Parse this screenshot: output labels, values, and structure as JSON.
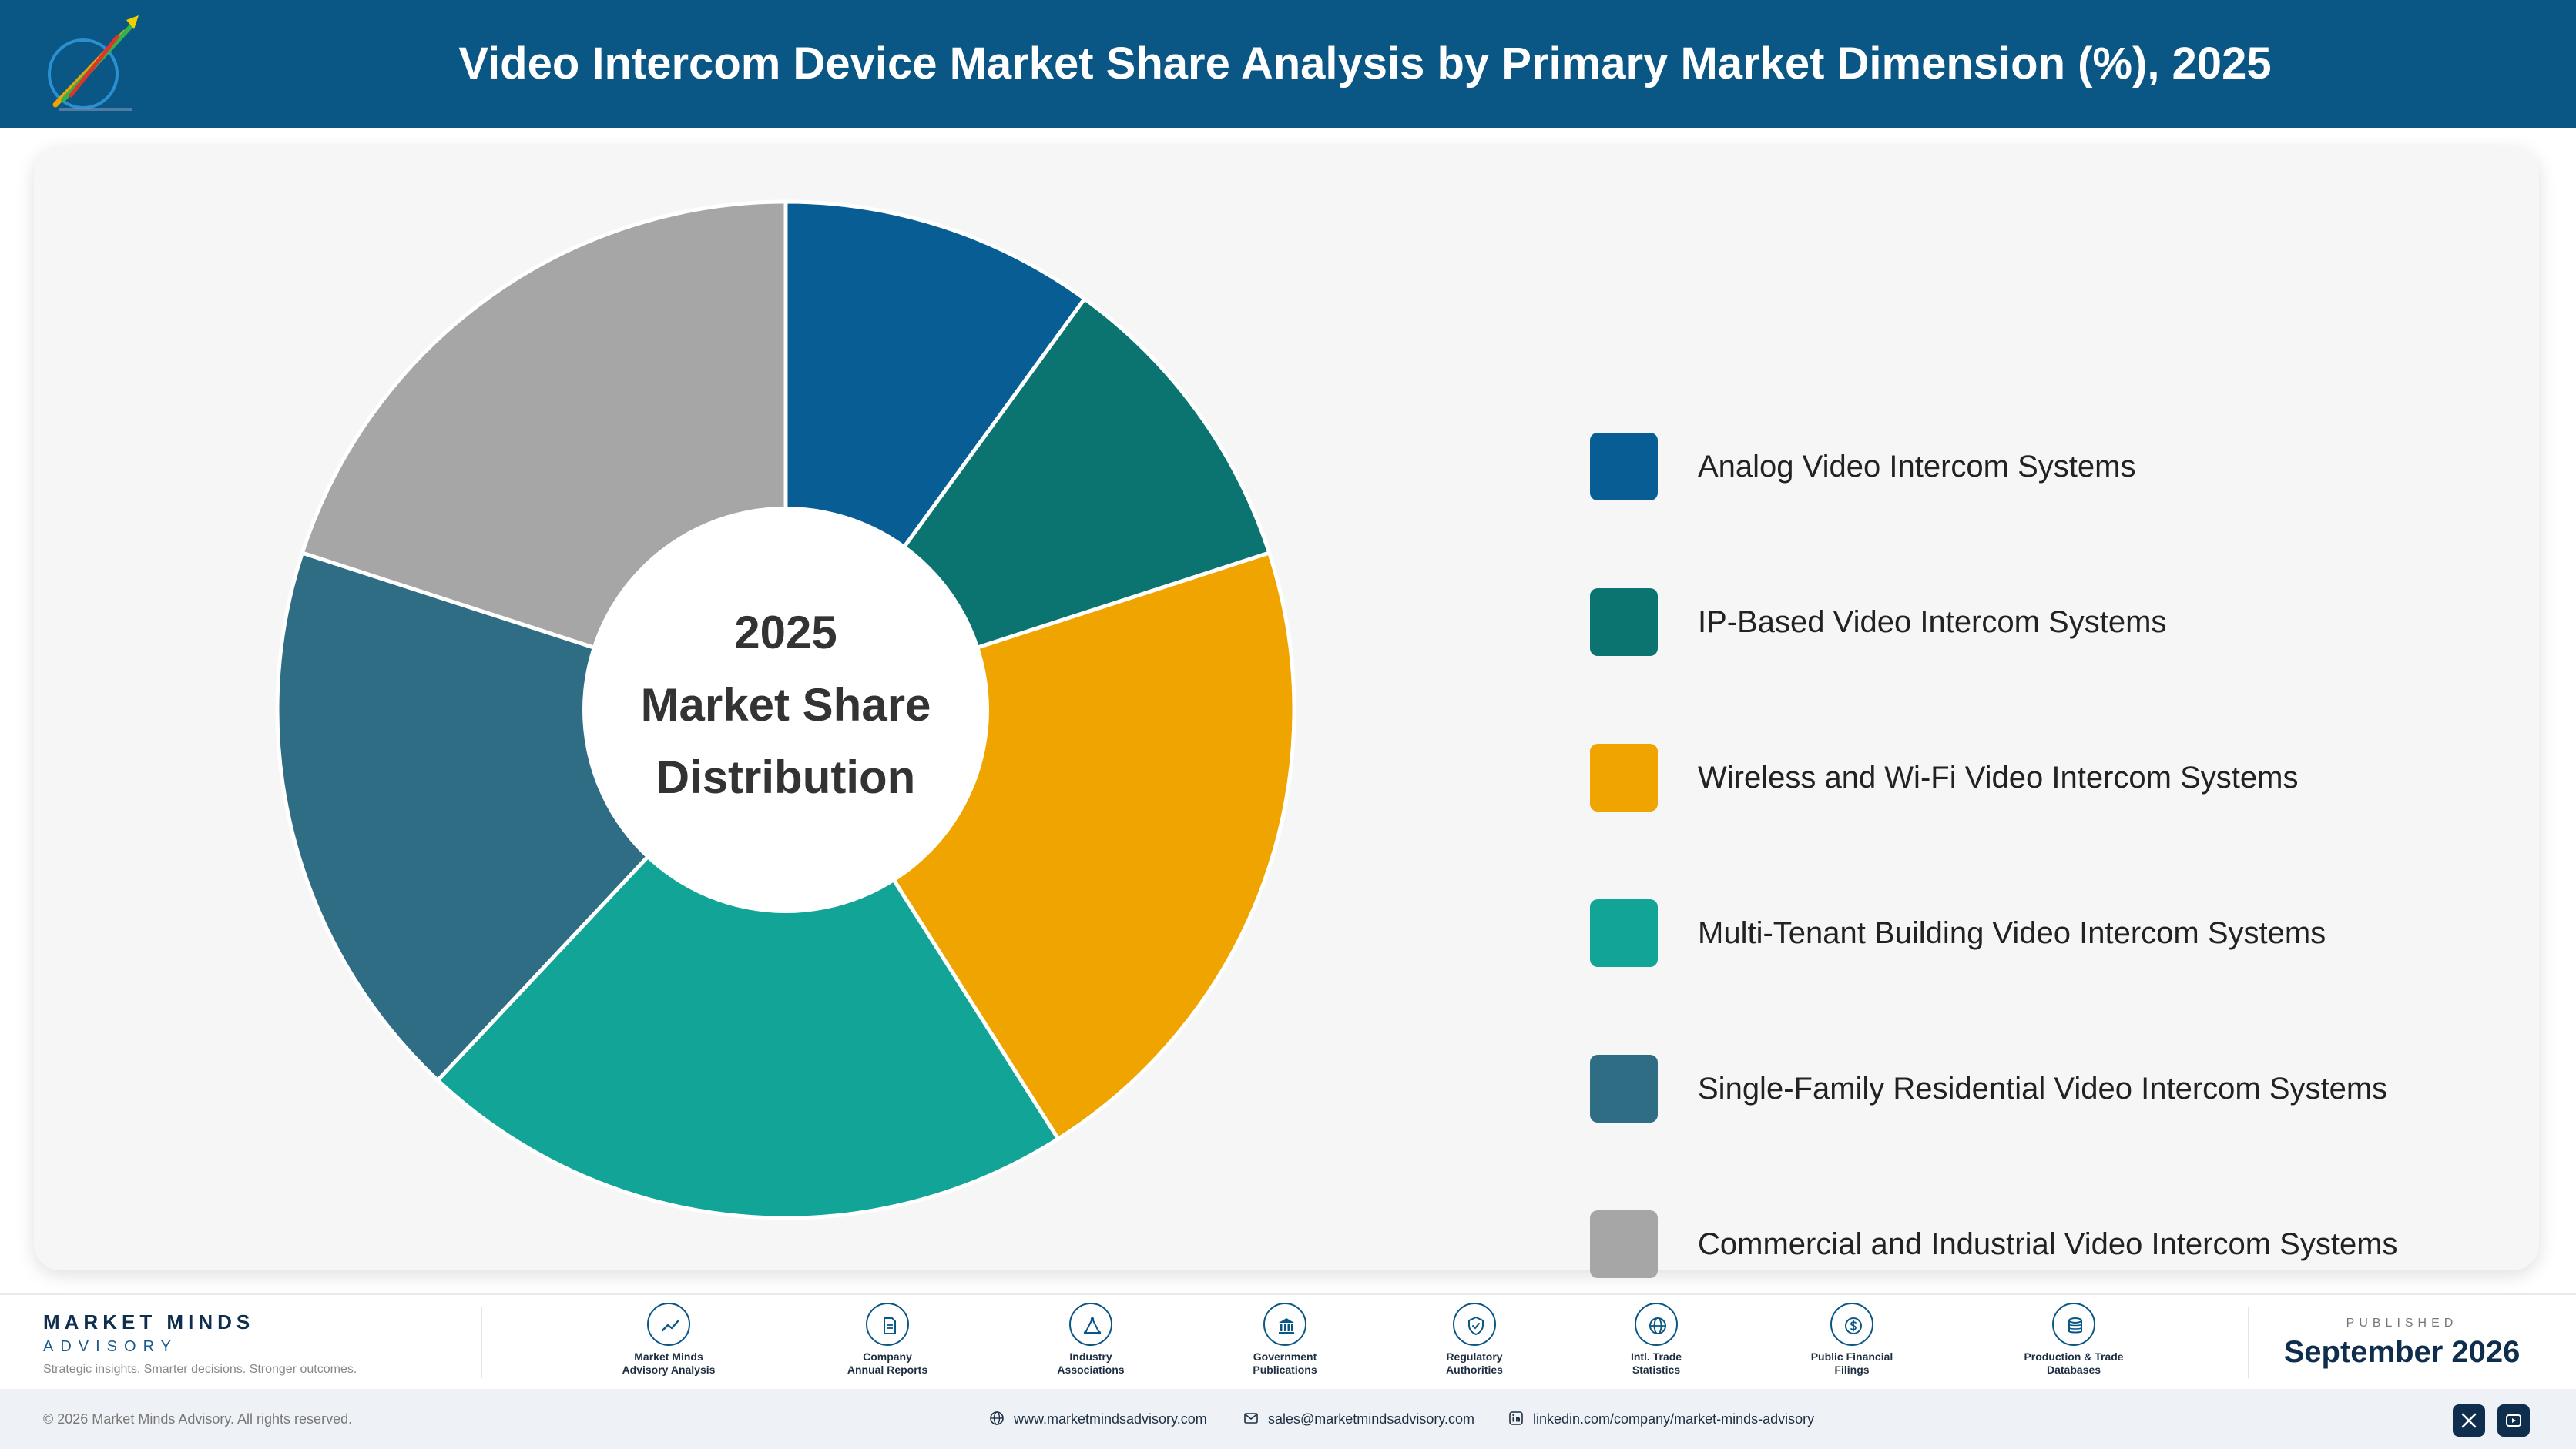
{
  "header": {
    "title": "Video Intercom Device Market Share Analysis by Primary Market Dimension (%), 2025"
  },
  "chart_data": {
    "type": "pie",
    "style": "donut",
    "center_label": [
      "2025",
      "Market Share",
      "Distribution"
    ],
    "legend_position": "right",
    "categories": [
      "Analog Video Intercom Systems",
      "IP-Based Video Intercom Systems",
      "Wireless and Wi-Fi Video Intercom Systems",
      "Multi-Tenant Building Video Intercom Systems",
      "Single-Family Residential Video Intercom Systems",
      "Commercial and Industrial Video Intercom Systems"
    ],
    "values": [
      10.0,
      10.0,
      21.0,
      21.0,
      18.0,
      20.0
    ],
    "colors": [
      "#075d94",
      "#0c7470",
      "#f0a400",
      "#12a496",
      "#2e6d84",
      "#a6a6a6"
    ]
  },
  "footer": {
    "brand_name": "MARKET MINDS",
    "brand_sub": "ADVISORY",
    "brand_tagline": "Strategic insights. Smarter decisions. Stronger outcomes.",
    "sources": [
      {
        "label": "Market Minds\nAdvisory Analysis",
        "icon": "trend-chart-icon"
      },
      {
        "label": "Company\nAnnual Reports",
        "icon": "document-icon"
      },
      {
        "label": "Industry\nAssociations",
        "icon": "network-icon"
      },
      {
        "label": "Government\nPublications",
        "icon": "government-building-icon"
      },
      {
        "label": "Regulatory\nAuthorities",
        "icon": "shield-check-icon"
      },
      {
        "label": "Intl. Trade\nStatistics",
        "icon": "globe-icon"
      },
      {
        "label": "Public Financial\nFilings",
        "icon": "dollar-coin-icon"
      },
      {
        "label": "Production & Trade\nDatabases",
        "icon": "database-icon"
      }
    ],
    "published_label": "PUBLISHED",
    "published_date": "September 2026"
  },
  "bottom_bar": {
    "copyright": "© 2026 Market Minds Advisory. All rights reserved.",
    "website": "www.marketmindsadvisory.com",
    "email": "sales@marketmindsadvisory.com",
    "linkedin": "linkedin.com/company/market-minds-advisory"
  }
}
